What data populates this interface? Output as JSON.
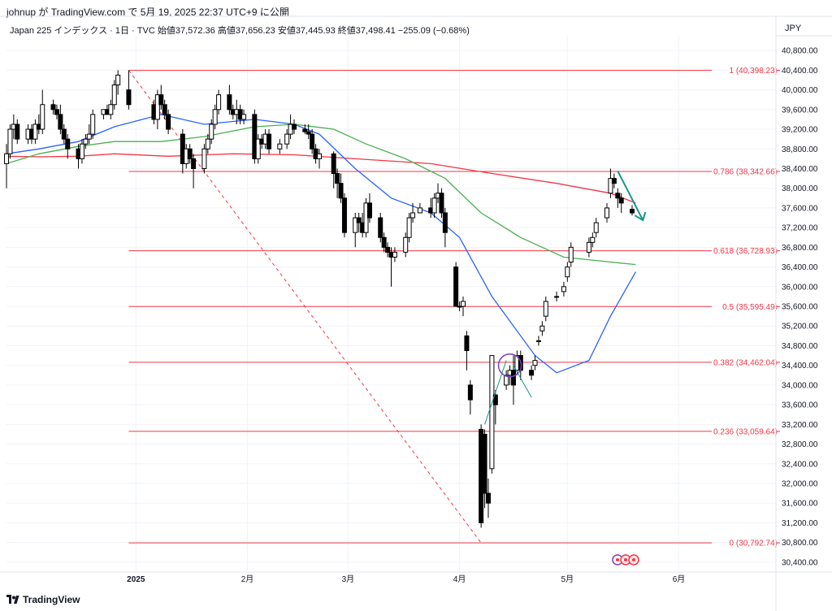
{
  "header": {
    "publish_line": "johnup が TradingView.com で 5月 19, 2025 22:37 UTC+9 に公開",
    "symbol_line": "Japan 225 インデックス · 1日 · TVC  始値37,572.36  高値37,656.23  安値37,445.93  終値37,498.41  −255.09 (−0.68%)",
    "currency": "JPY"
  },
  "footer": {
    "brand": "TradingView",
    "logo_icon": "tradingview-logo-icon"
  },
  "colors": {
    "fib": "#f23645",
    "ma_blue": "#2962ff",
    "ma_green": "#4caf50",
    "ma_red": "#f23645",
    "candle": "#000000",
    "arrow": "#159887",
    "circle": "#7b3fbe"
  },
  "chart_data": {
    "type": "candlestick",
    "title": "Japan 225 インデックス · 1日 · TVC",
    "ylim": [
      30200,
      41100
    ],
    "y_ticks": [
      "40,800.00",
      "40,400.00",
      "40,000.00",
      "39,600.00",
      "39,200.00",
      "38,800.00",
      "38,400.00",
      "38,000.00",
      "37,600.00",
      "37,200.00",
      "36,800.00",
      "36,400.00",
      "36,000.00",
      "35,600.00",
      "35,200.00",
      "34,800.00",
      "34,400.00",
      "34,000.00",
      "33,600.00",
      "33,200.00",
      "32,800.00",
      "32,400.00",
      "32,000.00",
      "31,600.00",
      "31,200.00",
      "30,800.00",
      "30,400.00"
    ],
    "x_ticks": [
      {
        "label": "2025",
        "date": "2025-01-01"
      },
      {
        "label": "2月",
        "date": "2025-02-01"
      },
      {
        "label": "3月",
        "date": "2025-03-01"
      },
      {
        "label": "4月",
        "date": "2025-04-01"
      },
      {
        "label": "5月",
        "date": "2025-05-01"
      },
      {
        "label": "6月",
        "date": "2025-06-01"
      }
    ],
    "x_range": [
      "2024-11-26",
      "2025-06-28"
    ],
    "fib_levels": [
      {
        "label": "1 (40,398.23)",
        "value": 40398.23
      },
      {
        "label": "0.786 (38,342.66)",
        "value": 38342.66
      },
      {
        "label": "0.618 (36,728.93)",
        "value": 36728.93
      },
      {
        "label": "0.5 (35,595.49)",
        "value": 35595.49
      },
      {
        "label": "0.382 (34,462.04)",
        "value": 34462.04
      },
      {
        "label": "0.236 (33,059.64)",
        "value": 33059.64
      },
      {
        "label": "0 (30,792.74)",
        "value": 30792.74
      }
    ],
    "fib_start_date": "2024-12-30",
    "candles": [
      [
        "2024-11-26",
        38500,
        38900,
        38000,
        38700
      ],
      [
        "2024-11-27",
        38700,
        39300,
        38600,
        39200
      ],
      [
        "2024-11-28",
        39200,
        39500,
        39000,
        39300
      ],
      [
        "2024-11-29",
        39300,
        39400,
        38900,
        39000
      ],
      [
        "2024-12-02",
        39000,
        39300,
        38900,
        39200
      ],
      [
        "2024-12-03",
        39200,
        39300,
        38900,
        39000
      ],
      [
        "2024-12-04",
        39000,
        39400,
        38900,
        39300
      ],
      [
        "2024-12-05",
        39300,
        39500,
        39100,
        39200
      ],
      [
        "2024-12-06",
        39200,
        40000,
        39100,
        39700
      ],
      [
        "2024-12-09",
        39700,
        39800,
        39500,
        39600
      ],
      [
        "2024-12-10",
        39600,
        39700,
        39400,
        39500
      ],
      [
        "2024-12-11",
        39500,
        39700,
        39100,
        39200
      ],
      [
        "2024-12-12",
        39200,
        39300,
        38900,
        39000
      ],
      [
        "2024-12-13",
        39000,
        39100,
        38600,
        38800
      ],
      [
        "2024-12-16",
        38800,
        38900,
        38400,
        38600
      ],
      [
        "2024-12-17",
        38600,
        39000,
        38500,
        38900
      ],
      [
        "2024-12-18",
        38900,
        39100,
        38800,
        39000
      ],
      [
        "2024-12-19",
        39000,
        39300,
        38900,
        39100
      ],
      [
        "2024-12-20",
        39100,
        39600,
        39000,
        39500
      ],
      [
        "2024-12-23",
        39500,
        39600,
        39400,
        39600
      ],
      [
        "2024-12-24",
        39600,
        39700,
        39500,
        39500
      ],
      [
        "2024-12-25",
        39500,
        39800,
        39400,
        39700
      ],
      [
        "2024-12-26",
        39700,
        40200,
        39600,
        40100
      ],
      [
        "2024-12-27",
        40100,
        40400,
        39900,
        40300
      ],
      [
        "2024-12-30",
        40000,
        40398,
        39600,
        39700
      ],
      [
        "2025-01-06",
        39700,
        39800,
        39300,
        39400
      ],
      [
        "2025-01-07",
        39400,
        40000,
        39200,
        39900
      ],
      [
        "2025-01-08",
        39900,
        40100,
        39600,
        39700
      ],
      [
        "2025-01-09",
        39700,
        39800,
        39400,
        39500
      ],
      [
        "2025-01-10",
        39500,
        39600,
        39100,
        39200
      ],
      [
        "2025-01-14",
        39100,
        39200,
        38300,
        38500
      ],
      [
        "2025-01-15",
        38500,
        38900,
        38400,
        38800
      ],
      [
        "2025-01-16",
        38800,
        38900,
        38500,
        38600
      ],
      [
        "2025-01-17",
        38600,
        38700,
        38000,
        38400
      ],
      [
        "2025-01-20",
        38400,
        38900,
        38300,
        38800
      ],
      [
        "2025-01-21",
        38800,
        39100,
        38700,
        39000
      ],
      [
        "2025-01-22",
        39000,
        39400,
        38900,
        39300
      ],
      [
        "2025-01-23",
        39300,
        39700,
        39200,
        39600
      ],
      [
        "2025-01-24",
        39600,
        40000,
        39500,
        39900
      ],
      [
        "2025-01-27",
        39900,
        40100,
        39500,
        39600
      ],
      [
        "2025-01-28",
        39600,
        39700,
        39400,
        39500
      ],
      [
        "2025-01-29",
        39500,
        39800,
        39300,
        39600
      ],
      [
        "2025-01-30",
        39600,
        39700,
        39300,
        39400
      ],
      [
        "2025-01-31",
        39400,
        39600,
        39300,
        39500
      ],
      [
        "2025-02-03",
        39500,
        39600,
        38500,
        38600
      ],
      [
        "2025-02-04",
        38600,
        39100,
        38500,
        39000
      ],
      [
        "2025-02-05",
        39000,
        39100,
        38800,
        38900
      ],
      [
        "2025-02-06",
        38900,
        39200,
        38800,
        39100
      ],
      [
        "2025-02-07",
        39100,
        39200,
        38700,
        38800
      ],
      [
        "2025-02-10",
        38800,
        39000,
        38700,
        38900
      ],
      [
        "2025-02-12",
        38900,
        39200,
        38800,
        39100
      ],
      [
        "2025-02-13",
        39100,
        39500,
        39000,
        39300
      ],
      [
        "2025-02-14",
        39300,
        39400,
        39100,
        39200
      ],
      [
        "2025-02-17",
        39200,
        39300,
        39100,
        39150
      ],
      [
        "2025-02-18",
        39150,
        39300,
        39000,
        39100
      ],
      [
        "2025-02-19",
        39100,
        39200,
        38700,
        38800
      ],
      [
        "2025-02-20",
        38800,
        38900,
        38500,
        38600
      ],
      [
        "2025-02-21",
        38600,
        38800,
        38400,
        38700
      ],
      [
        "2025-02-25",
        38700,
        38750,
        38000,
        38300
      ],
      [
        "2025-02-26",
        38300,
        38400,
        37800,
        38100
      ],
      [
        "2025-02-27",
        38100,
        38300,
        37700,
        37800
      ],
      [
        "2025-02-28",
        37800,
        37900,
        37000,
        37100
      ],
      [
        "2025-03-03",
        37100,
        37500,
        36800,
        37400
      ],
      [
        "2025-03-04",
        37400,
        37500,
        37100,
        37300
      ],
      [
        "2025-03-05",
        37300,
        37500,
        37000,
        37100
      ],
      [
        "2025-03-06",
        37100,
        37800,
        37000,
        37700
      ],
      [
        "2025-03-07",
        37700,
        37900,
        37300,
        37400
      ],
      [
        "2025-03-10",
        37400,
        37500,
        36900,
        37000
      ],
      [
        "2025-03-11",
        37000,
        37100,
        36700,
        36800
      ],
      [
        "2025-03-12",
        36800,
        36900,
        36600,
        36700
      ],
      [
        "2025-03-13",
        36700,
        36800,
        36000,
        36600
      ],
      [
        "2025-03-14",
        36600,
        36800,
        36500,
        36700
      ],
      [
        "2025-03-17",
        36700,
        37100,
        36600,
        37000
      ],
      [
        "2025-03-18",
        37000,
        37500,
        36900,
        37400
      ],
      [
        "2025-03-19",
        37400,
        37700,
        37300,
        37500
      ],
      [
        "2025-03-21",
        37500,
        37700,
        37500,
        37600
      ],
      [
        "2025-03-24",
        37600,
        37800,
        37400,
        37500
      ],
      [
        "2025-03-25",
        37500,
        37900,
        37400,
        37800
      ],
      [
        "2025-03-26",
        37800,
        38100,
        37700,
        37900
      ],
      [
        "2025-03-27",
        37900,
        38000,
        37400,
        37500
      ],
      [
        "2025-03-28",
        37500,
        37600,
        36800,
        37100
      ],
      [
        "2025-03-31",
        36400,
        36500,
        35600,
        35600
      ],
      [
        "2025-04-01",
        35600,
        35700,
        35500,
        35600
      ],
      [
        "2025-04-02",
        35600,
        35800,
        35400,
        35700
      ],
      [
        "2025-04-03",
        35000,
        35100,
        34300,
        34700
      ],
      [
        "2025-04-04",
        34000,
        34100,
        33400,
        33700
      ],
      [
        "2025-04-07",
        33100,
        33200,
        31100,
        31200
      ],
      [
        "2025-04-08",
        33000,
        33100,
        31500,
        31800
      ],
      [
        "2025-04-09",
        31800,
        32100,
        31300,
        31600
      ],
      [
        "2025-04-10",
        32300,
        34600,
        32200,
        34600
      ],
      [
        "2025-04-11",
        33800,
        33900,
        33200,
        33600
      ],
      [
        "2025-04-14",
        34000,
        34300,
        33900,
        34200
      ],
      [
        "2025-04-15",
        34200,
        34400,
        34000,
        34300
      ],
      [
        "2025-04-16",
        34300,
        34600,
        33600,
        34000
      ],
      [
        "2025-04-17",
        34300,
        34700,
        34200,
        34600
      ],
      [
        "2025-04-18",
        34600,
        34700,
        34100,
        34300
      ],
      [
        "2025-04-21",
        34300,
        34400,
        34100,
        34200
      ],
      [
        "2025-04-22",
        34400,
        34600,
        34300,
        34500
      ],
      [
        "2025-04-23",
        34900,
        35000,
        34800,
        34900
      ],
      [
        "2025-04-24",
        35100,
        35300,
        35000,
        35200
      ],
      [
        "2025-04-25",
        35400,
        35800,
        35300,
        35700
      ],
      [
        "2025-04-28",
        35800,
        35900,
        35700,
        35800
      ],
      [
        "2025-04-30",
        35900,
        36100,
        35800,
        36000
      ],
      [
        "2025-05-01",
        36200,
        36500,
        36100,
        36400
      ],
      [
        "2025-05-02",
        36500,
        36900,
        36400,
        36800
      ],
      [
        "2025-05-07",
        36700,
        37000,
        36600,
        36900
      ],
      [
        "2025-05-08",
        36900,
        37100,
        36800,
        37000
      ],
      [
        "2025-05-09",
        37100,
        37400,
        37000,
        37300
      ],
      [
        "2025-05-12",
        37400,
        37700,
        37300,
        37600
      ],
      [
        "2025-05-13",
        37900,
        38400,
        37800,
        38200
      ],
      [
        "2025-05-14",
        38200,
        38300,
        38000,
        38100
      ],
      [
        "2025-05-15",
        37900,
        38000,
        37600,
        37800
      ],
      [
        "2025-05-16",
        37800,
        37900,
        37500,
        37700
      ],
      [
        "2025-05-19",
        37572.36,
        37656.23,
        37445.93,
        37498.41
      ]
    ],
    "ma_blue": [
      [
        "2024-11-26",
        38700
      ],
      [
        "2024-12-05",
        38800
      ],
      [
        "2024-12-16",
        38950
      ],
      [
        "2024-12-26",
        39250
      ],
      [
        "2025-01-08",
        39500
      ],
      [
        "2025-01-20",
        39300
      ],
      [
        "2025-02-03",
        39400
      ],
      [
        "2025-02-14",
        39300
      ],
      [
        "2025-02-21",
        39100
      ],
      [
        "2025-03-03",
        38400
      ],
      [
        "2025-03-13",
        37800
      ],
      [
        "2025-03-24",
        37500
      ],
      [
        "2025-04-01",
        37000
      ],
      [
        "2025-04-10",
        35800
      ],
      [
        "2025-04-22",
        34600
      ],
      [
        "2025-04-28",
        34250
      ],
      [
        "2025-05-07",
        34500
      ],
      [
        "2025-05-13",
        35400
      ],
      [
        "2025-05-20",
        36300
      ]
    ],
    "ma_green": [
      [
        "2024-11-26",
        38500
      ],
      [
        "2024-12-05",
        38700
      ],
      [
        "2024-12-16",
        38850
      ],
      [
        "2024-12-26",
        38950
      ],
      [
        "2025-01-08",
        38950
      ],
      [
        "2025-01-20",
        39050
      ],
      [
        "2025-02-03",
        39250
      ],
      [
        "2025-02-14",
        39300
      ],
      [
        "2025-02-25",
        39200
      ],
      [
        "2025-03-06",
        38900
      ],
      [
        "2025-03-17",
        38600
      ],
      [
        "2025-03-28",
        38200
      ],
      [
        "2025-04-07",
        37500
      ],
      [
        "2025-04-18",
        37000
      ],
      [
        "2025-04-30",
        36600
      ],
      [
        "2025-05-13",
        36500
      ],
      [
        "2025-05-20",
        36450
      ]
    ],
    "ma_red": [
      [
        "2024-11-26",
        38650
      ],
      [
        "2024-12-05",
        38640
      ],
      [
        "2024-12-16",
        38650
      ],
      [
        "2024-12-26",
        38700
      ],
      [
        "2025-01-10",
        38650
      ],
      [
        "2025-01-28",
        38700
      ],
      [
        "2025-02-14",
        38680
      ],
      [
        "2025-03-03",
        38600
      ],
      [
        "2025-03-24",
        38500
      ],
      [
        "2025-04-10",
        38300
      ],
      [
        "2025-04-28",
        38100
      ],
      [
        "2025-05-13",
        37900
      ],
      [
        "2025-05-20",
        37700
      ]
    ]
  }
}
